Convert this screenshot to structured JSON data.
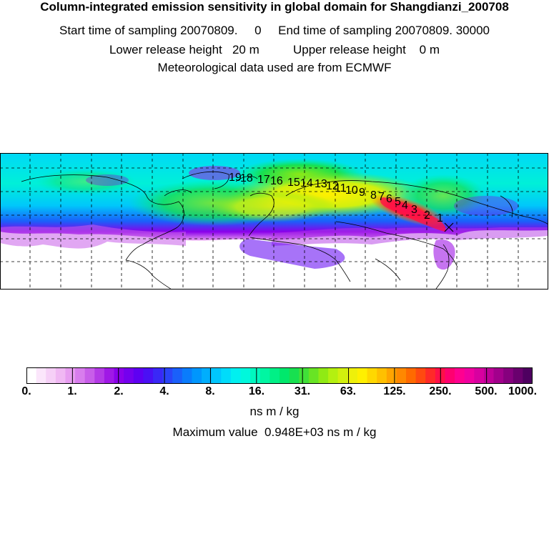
{
  "header": {
    "title": "Column-integrated emission sensitivity in global domain for Shangdianzi_200708",
    "line2": "Start time of sampling 20070809.     0     End time of sampling 20070809. 30000",
    "line3": "Lower release height   20 m          Upper release height    0 m",
    "line4": "Meteorological data used are from ECMWF"
  },
  "map": {
    "trajectory_labels": [
      "1",
      "2",
      "3",
      "4",
      "5",
      "6",
      "7",
      "8",
      "9",
      "10",
      "11",
      "12",
      "13",
      "14",
      "15",
      "16",
      "17",
      "18",
      "19"
    ],
    "release_marker": "x"
  },
  "colorbar": {
    "tick_labels": [
      "0.",
      "1.",
      "2.",
      "4.",
      "8.",
      "16.",
      "31.",
      "63.",
      "125.",
      "250.",
      "500.",
      "1000."
    ],
    "units": "ns m / kg",
    "colors": [
      "#ffffff",
      "#fbe6fb",
      "#f6d0f7",
      "#f0b8f3",
      "#e79df0",
      "#d87ded",
      "#c85ee9",
      "#b43ae6",
      "#a018e6",
      "#8a00ea",
      "#7400ee",
      "#5e00f2",
      "#4a10f4",
      "#3a28f6",
      "#2a44f8",
      "#1a60fa",
      "#0a7cfc",
      "#0096fd",
      "#00aefd",
      "#00c6fd",
      "#00dcfa",
      "#00f0f0",
      "#00f8dc",
      "#00f8c0",
      "#00f6a2",
      "#00f086",
      "#00e86c",
      "#18e050",
      "#40e038",
      "#68e424",
      "#90ea14",
      "#b4f010",
      "#d2f00e",
      "#eef00a",
      "#fff000",
      "#ffd800",
      "#ffc000",
      "#ffa400",
      "#ff8800",
      "#ff6a00",
      "#ff4a10",
      "#ff2a28",
      "#ff1048",
      "#ff0070",
      "#ff0090",
      "#f000a0",
      "#d800a0",
      "#be0098",
      "#a2008c",
      "#86007e",
      "#6a006e",
      "#4e0060"
    ]
  },
  "max_value_text": "Maximum value  0.948E+03 ns m / kg"
}
